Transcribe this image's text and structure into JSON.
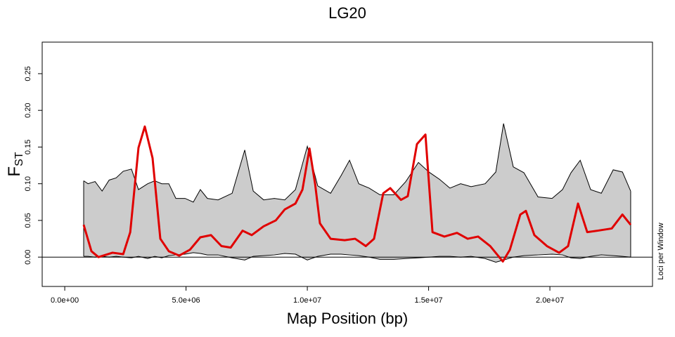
{
  "chart_data": {
    "type": "band",
    "title": "LG20",
    "xlabel": "Map Position (bp)",
    "ylabel": {
      "main": "F",
      "sub": "ST"
    },
    "y2label": "Loci per Window",
    "xlim": [
      -930000,
      24230000
    ],
    "ylim": [
      -0.04,
      0.293
    ],
    "xticks": [
      {
        "value": 0,
        "label": "0.0e+00"
      },
      {
        "value": 5000000,
        "label": "5.0e+06"
      },
      {
        "value": 10000000,
        "label": "1.0e+07"
      },
      {
        "value": 15000000,
        "label": "1.5e+07"
      },
      {
        "value": 20000000,
        "label": "2.0e+07"
      }
    ],
    "yticks": [
      {
        "value": 0,
        "label": "0.00"
      },
      {
        "value": 0.05,
        "label": "0.05"
      },
      {
        "value": 0.1,
        "label": "0.10"
      },
      {
        "value": 0.15,
        "label": "0.15"
      },
      {
        "value": 0.2,
        "label": "0.20"
      },
      {
        "value": 0.25,
        "label": "0.25"
      }
    ],
    "hline": 0,
    "band": {
      "color": "#cccccc",
      "x": [
        780000,
        960000,
        1250000,
        1540000,
        1830000,
        2120000,
        2410000,
        2750000,
        3040000,
        3420000,
        3710000,
        4000000,
        4290000,
        4580000,
        4960000,
        5300000,
        5590000,
        5880000,
        6320000,
        6900000,
        7420000,
        7770000,
        8200000,
        8640000,
        9070000,
        9510000,
        10000000,
        10430000,
        10960000,
        11390000,
        11740000,
        12120000,
        12550000,
        12990000,
        13570000,
        14060000,
        14580000,
        15010000,
        15450000,
        15880000,
        16320000,
        16750000,
        17330000,
        17770000,
        18090000,
        18490000,
        18930000,
        19510000,
        20090000,
        20520000,
        20870000,
        21250000,
        21680000,
        22120000,
        22610000,
        22990000,
        23330000
      ],
      "upper": [
        0.104,
        0.1,
        0.103,
        0.09,
        0.105,
        0.108,
        0.117,
        0.12,
        0.092,
        0.1,
        0.104,
        0.1,
        0.1,
        0.08,
        0.08,
        0.075,
        0.092,
        0.08,
        0.078,
        0.087,
        0.146,
        0.09,
        0.078,
        0.08,
        0.078,
        0.092,
        0.151,
        0.097,
        0.087,
        0.111,
        0.132,
        0.1,
        0.094,
        0.085,
        0.085,
        0.103,
        0.129,
        0.116,
        0.106,
        0.094,
        0.1,
        0.096,
        0.1,
        0.116,
        0.182,
        0.123,
        0.115,
        0.082,
        0.08,
        0.092,
        0.115,
        0.132,
        0.092,
        0.087,
        0.119,
        0.116,
        0.09
      ],
      "lower": [
        0.001,
        0.001,
        0,
        0.001,
        0,
        0.001,
        0,
        -0.001,
        0.001,
        -0.002,
        0.001,
        -0.001,
        0.002,
        0.003,
        0.004,
        0.006,
        0.005,
        0.003,
        0.003,
        -0.001,
        -0.004,
        0.001,
        0.002,
        0.003,
        0.005,
        0.004,
        -0.004,
        0.001,
        0.004,
        0.004,
        0.003,
        0.002,
        0,
        -0.003,
        -0.003,
        -0.002,
        -0.001,
        0,
        0.001,
        0.001,
        0,
        0.001,
        -0.002,
        -0.007,
        -0.004,
        0,
        0.002,
        0.003,
        0.004,
        0.003,
        -0.001,
        -0.002,
        0.001,
        0.003,
        0.002,
        0.001,
        0
      ]
    },
    "line": {
      "color": "#e00000",
      "x": [
        780000,
        1100000,
        1390000,
        1970000,
        2410000,
        2700000,
        3040000,
        3300000,
        3620000,
        3940000,
        4290000,
        4720000,
        5160000,
        5590000,
        6030000,
        6460000,
        6840000,
        7330000,
        7710000,
        8200000,
        8700000,
        9070000,
        9510000,
        9800000,
        10090000,
        10320000,
        10520000,
        10960000,
        11540000,
        11970000,
        12410000,
        12750000,
        13130000,
        13420000,
        13860000,
        14140000,
        14520000,
        14870000,
        15160000,
        15650000,
        16170000,
        16610000,
        17040000,
        17540000,
        18060000,
        18350000,
        18780000,
        19010000,
        19360000,
        19880000,
        20380000,
        20750000,
        21160000,
        21540000,
        21970000,
        22550000,
        22990000,
        23330000
      ],
      "values": [
        0.044,
        0.008,
        0,
        0.006,
        0.004,
        0.034,
        0.149,
        0.178,
        0.135,
        0.025,
        0.008,
        0.002,
        0.01,
        0.027,
        0.03,
        0.015,
        0.013,
        0.036,
        0.03,
        0.042,
        0.05,
        0.065,
        0.073,
        0.092,
        0.148,
        0.1,
        0.046,
        0.025,
        0.023,
        0.025,
        0.015,
        0.025,
        0.087,
        0.094,
        0.078,
        0.083,
        0.154,
        0.167,
        0.034,
        0.028,
        0.033,
        0.025,
        0.028,
        0.015,
        -0.006,
        0.01,
        0.058,
        0.063,
        0.03,
        0.015,
        0.006,
        0.015,
        0.073,
        0.034,
        0.036,
        0.039,
        0.058,
        0.044
      ]
    }
  }
}
